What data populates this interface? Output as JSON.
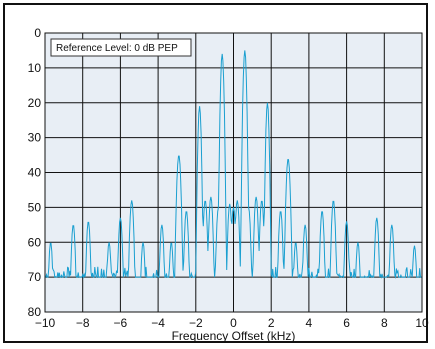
{
  "chart_data": {
    "type": "line",
    "title": "",
    "xlabel": "Frequency Offset (kHz)",
    "ylabel": "",
    "xlim": [
      -10,
      10
    ],
    "ylim": [
      0,
      80
    ],
    "y_inverted": true,
    "x_ticks": [
      -10,
      -8,
      -6,
      -4,
      -2,
      0,
      2,
      4,
      6,
      8,
      10
    ],
    "x_tick_labels": [
      "−10",
      "−8",
      "−6",
      "−4",
      "−2",
      "0",
      "2",
      "4",
      "6",
      "8",
      "10"
    ],
    "y_ticks": [
      0,
      10,
      20,
      30,
      40,
      50,
      60,
      70,
      80
    ],
    "y_tick_labels": [
      "0",
      "10",
      "20",
      "30",
      "40",
      "50",
      "60",
      "70",
      "80"
    ],
    "grid": true,
    "plot_background": "#e8eef5",
    "annotation": "Reference Level: 0 dB PEP",
    "series": [
      {
        "color": "#1a9fd0",
        "floor_db": 70,
        "peaks": [
          {
            "x": -9.7,
            "y": 60
          },
          {
            "x": -8.5,
            "y": 55
          },
          {
            "x": -7.7,
            "y": 54
          },
          {
            "x": -6.6,
            "y": 60
          },
          {
            "x": -6.0,
            "y": 53
          },
          {
            "x": -5.4,
            "y": 48
          },
          {
            "x": -4.8,
            "y": 60
          },
          {
            "x": -3.8,
            "y": 55
          },
          {
            "x": -3.3,
            "y": 60
          },
          {
            "x": -2.9,
            "y": 35
          },
          {
            "x": -2.5,
            "y": 51
          },
          {
            "x": -1.8,
            "y": 21
          },
          {
            "x": -1.5,
            "y": 48
          },
          {
            "x": -1.2,
            "y": 47
          },
          {
            "x": -0.8,
            "y": 50
          },
          {
            "x": -0.6,
            "y": 6
          },
          {
            "x": -0.2,
            "y": 49
          },
          {
            "x": 0.0,
            "y": 50
          },
          {
            "x": 0.2,
            "y": 48
          },
          {
            "x": 0.6,
            "y": 5
          },
          {
            "x": 0.8,
            "y": 50
          },
          {
            "x": 1.2,
            "y": 47
          },
          {
            "x": 1.5,
            "y": 48
          },
          {
            "x": 1.8,
            "y": 20
          },
          {
            "x": 2.5,
            "y": 51
          },
          {
            "x": 2.9,
            "y": 36
          },
          {
            "x": 3.3,
            "y": 60
          },
          {
            "x": 3.8,
            "y": 55
          },
          {
            "x": 4.7,
            "y": 51
          },
          {
            "x": 5.3,
            "y": 48
          },
          {
            "x": 6.0,
            "y": 54
          },
          {
            "x": 6.6,
            "y": 60
          },
          {
            "x": 7.6,
            "y": 53
          },
          {
            "x": 8.4,
            "y": 55
          },
          {
            "x": 9.6,
            "y": 61
          }
        ]
      }
    ]
  }
}
